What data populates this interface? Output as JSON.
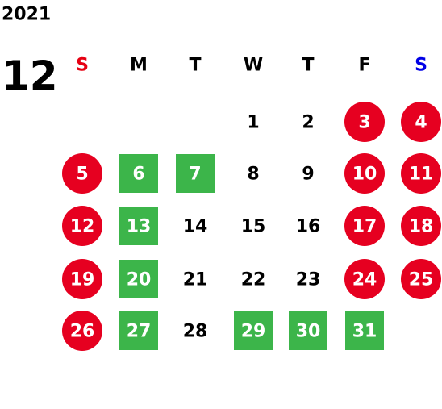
{
  "year": "2021",
  "month": "12",
  "marks": {
    "circle": "#e60020",
    "square": "#3cb54a"
  },
  "weekdays": [
    {
      "label": "S",
      "color": "#e60012"
    },
    {
      "label": "M",
      "color": "#000000"
    },
    {
      "label": "T",
      "color": "#000000"
    },
    {
      "label": "W",
      "color": "#000000"
    },
    {
      "label": "T",
      "color": "#000000"
    },
    {
      "label": "F",
      "color": "#000000"
    },
    {
      "label": "S",
      "color": "#0000e6"
    }
  ],
  "weeks": [
    [
      null,
      null,
      null,
      {
        "day": "1",
        "style": null
      },
      {
        "day": "2",
        "style": null
      },
      {
        "day": "3",
        "style": "circle"
      },
      {
        "day": "4",
        "style": "circle"
      }
    ],
    [
      {
        "day": "5",
        "style": "circle"
      },
      {
        "day": "6",
        "style": "square"
      },
      {
        "day": "7",
        "style": "square"
      },
      {
        "day": "8",
        "style": null
      },
      {
        "day": "9",
        "style": null
      },
      {
        "day": "10",
        "style": "circle"
      },
      {
        "day": "11",
        "style": "circle"
      }
    ],
    [
      {
        "day": "12",
        "style": "circle"
      },
      {
        "day": "13",
        "style": "square"
      },
      {
        "day": "14",
        "style": null
      },
      {
        "day": "15",
        "style": null
      },
      {
        "day": "16",
        "style": null
      },
      {
        "day": "17",
        "style": "circle"
      },
      {
        "day": "18",
        "style": "circle"
      }
    ],
    [
      {
        "day": "19",
        "style": "circle"
      },
      {
        "day": "20",
        "style": "square"
      },
      {
        "day": "21",
        "style": null
      },
      {
        "day": "22",
        "style": null
      },
      {
        "day": "23",
        "style": null
      },
      {
        "day": "24",
        "style": "circle"
      },
      {
        "day": "25",
        "style": "circle"
      }
    ],
    [
      {
        "day": "26",
        "style": "circle"
      },
      {
        "day": "27",
        "style": "square"
      },
      {
        "day": "28",
        "style": null
      },
      {
        "day": "29",
        "style": "square"
      },
      {
        "day": "30",
        "style": "square"
      },
      {
        "day": "31",
        "style": "square"
      },
      null
    ]
  ]
}
